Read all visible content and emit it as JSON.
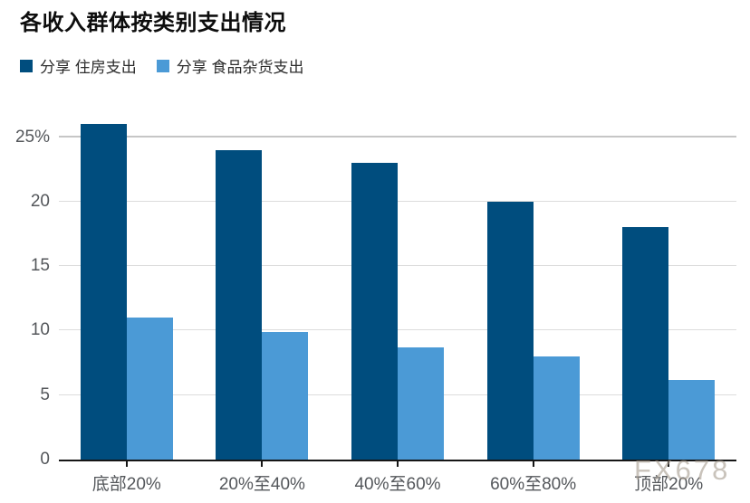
{
  "page": {
    "title": "各收入群体按类别支出情况",
    "watermark": "FX678"
  },
  "legend": {
    "items": [
      {
        "label": "分享 住房支出",
        "color": "#004d7e"
      },
      {
        "label": "分享 食品杂货支出",
        "color": "#4b9ad6"
      }
    ]
  },
  "chart_data": {
    "type": "bar",
    "title": "各收入群体按类别支出情况",
    "categories": [
      "底部20%",
      "20%至40%",
      "40%至60%",
      "60%至80%",
      "顶部20%"
    ],
    "series": [
      {
        "name": "分享 住房支出",
        "color": "#004d7e",
        "values": [
          26,
          24,
          23,
          20,
          18
        ]
      },
      {
        "name": "分享 食品杂货支出",
        "color": "#4b9ad6",
        "values": [
          11,
          9.9,
          8.7,
          8,
          6.2
        ]
      }
    ],
    "xlabel": "",
    "ylabel": "",
    "unit": "%",
    "ylim": [
      0,
      26.5
    ],
    "yticks": [
      {
        "value": 0,
        "label": "0"
      },
      {
        "value": 5,
        "label": "5"
      },
      {
        "value": 10,
        "label": "10"
      },
      {
        "value": 15,
        "label": "15"
      },
      {
        "value": 20,
        "label": "20"
      },
      {
        "value": 25,
        "label": "25%"
      }
    ],
    "grid": true,
    "legend_position": "top-left"
  },
  "colors": {
    "background": "#ffffff",
    "series_housing": "#004d7e",
    "series_groceries": "#4b9ad6",
    "gridline": "#dcdcdc",
    "gridline_top": "#c6c6c6",
    "axis_line": "#161616",
    "tick_text": "#54575b",
    "title_text": "#0d0d0d",
    "watermark_text": "rgba(168,158,146,0.62)"
  }
}
